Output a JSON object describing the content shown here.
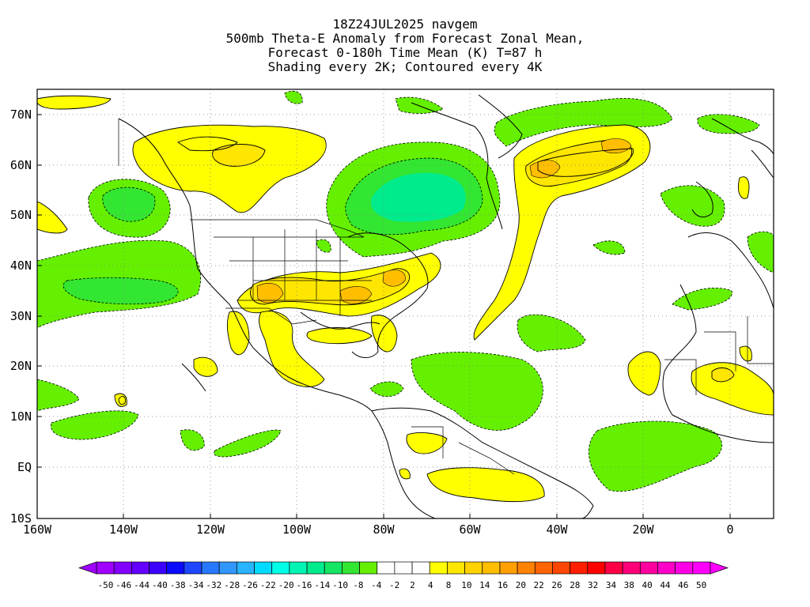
{
  "titles": {
    "line1": "18Z24JUL2025 navgem",
    "line2": "500mb Theta-E Anomaly from Forecast Zonal Mean,",
    "line3": "Forecast 0-180h Time Mean (K) T=87 h",
    "line4": "Shading every 2K; Contoured every 4K"
  },
  "map": {
    "lat_labels": [
      "70N",
      "60N",
      "50N",
      "40N",
      "30N",
      "20N",
      "10N",
      "EQ",
      "10S"
    ],
    "lon_labels": [
      "160W",
      "140W",
      "120W",
      "100W",
      "80W",
      "60W",
      "40W",
      "20W",
      "0"
    ]
  },
  "colorbar": {
    "colors": [
      "#a000ff",
      "#8200ff",
      "#6400ff",
      "#3c00ff",
      "#0a0aff",
      "#1e46ff",
      "#2878ff",
      "#3296ff",
      "#28b4ff",
      "#00dcff",
      "#00ffe6",
      "#00f5b4",
      "#00eb8c",
      "#14e664",
      "#32e632",
      "#64f000",
      "#ffffff",
      "#ffffff",
      "#ffffff",
      "#ffff00",
      "#ffe600",
      "#ffd200",
      "#ffbe00",
      "#ffa000",
      "#ff8200",
      "#ff6400",
      "#ff4600",
      "#ff1e00",
      "#ff0000",
      "#ff0046",
      "#ff0078",
      "#ff00a0",
      "#ff00c8",
      "#ff00e6",
      "#ff00ff"
    ],
    "labels": [
      "-50",
      "-46",
      "-44",
      "-40",
      "-38",
      "-34",
      "-32",
      "-28",
      "-26",
      "-22",
      "-20",
      "-16",
      "-14",
      "-10",
      "-8",
      "-4",
      "-2",
      "2",
      "4",
      "8",
      "10",
      "14",
      "16",
      "20",
      "22",
      "26",
      "28",
      "32",
      "34",
      "38",
      "40",
      "44",
      "46",
      "50"
    ]
  },
  "colors": {
    "green_shade": "#64f000",
    "green_mid": "#32e632",
    "green_deep": "#14e664",
    "green_cyan": "#00eb8c",
    "yellow_shade": "#ffff00",
    "yellow_mid": "#ffe600",
    "orange_shade": "#ffbe00",
    "coast": "#000000",
    "grid": "#7f7f7f"
  }
}
